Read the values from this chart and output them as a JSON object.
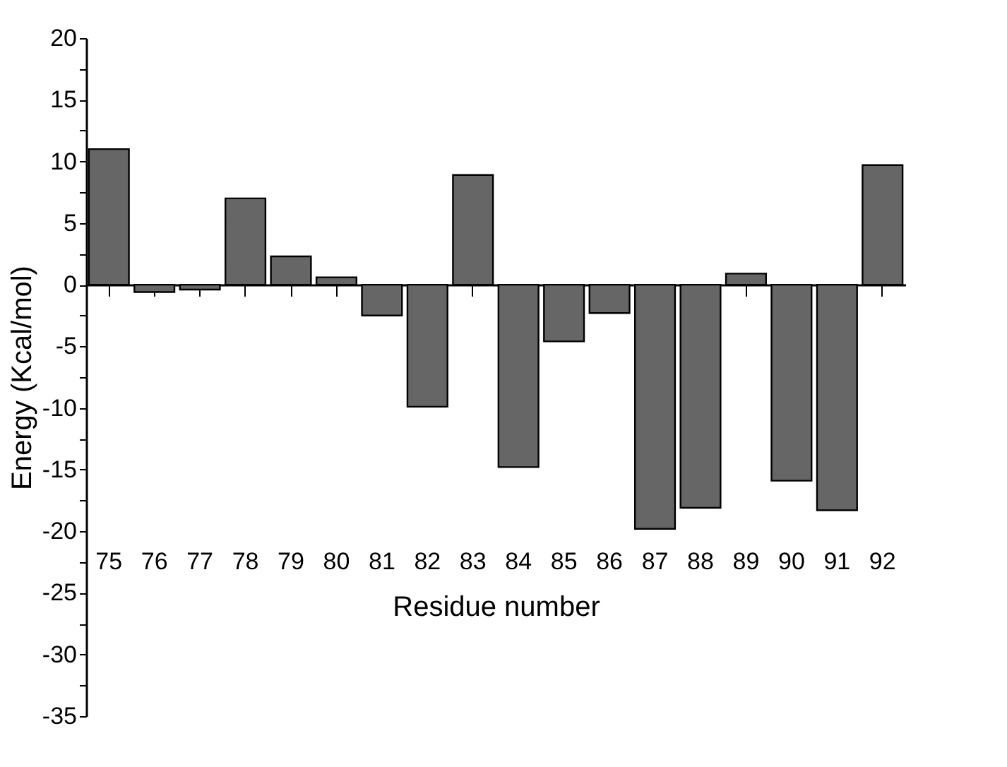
{
  "chart_data": {
    "type": "bar",
    "xlabel": "Residue number",
    "ylabel": "Energy (Kcal/mol)",
    "categories": [
      "75",
      "76",
      "77",
      "78",
      "79",
      "80",
      "81",
      "82",
      "83",
      "84",
      "85",
      "86",
      "87",
      "88",
      "89",
      "90",
      "91",
      "92"
    ],
    "values": [
      11.0,
      -0.6,
      -0.4,
      7.0,
      2.3,
      0.6,
      -2.5,
      -9.9,
      8.9,
      -14.8,
      -4.6,
      -2.3,
      -19.8,
      -18.1,
      0.9,
      -15.9,
      -18.3,
      9.7
    ],
    "color": "#666666",
    "ylim": [
      -35,
      20
    ],
    "yticks": [
      -35,
      {
        "value": -32.5,
        "label": null
      },
      -30,
      {
        "value": -27.5,
        "label": null
      },
      -25,
      {
        "value": -22.5,
        "label": null
      },
      -20,
      {
        "value": -17.5,
        "label": null
      },
      -15,
      {
        "value": -12.5,
        "label": null
      },
      -10,
      {
        "value": -7.5,
        "label": null
      },
      -5,
      {
        "value": -2.5,
        "label": null
      },
      0,
      {
        "value": 2.5,
        "label": null
      },
      5,
      {
        "value": 7.5,
        "label": null
      },
      10,
      {
        "value": 12.5,
        "label": null
      },
      15,
      {
        "value": 17.5,
        "label": null
      },
      20
    ]
  }
}
